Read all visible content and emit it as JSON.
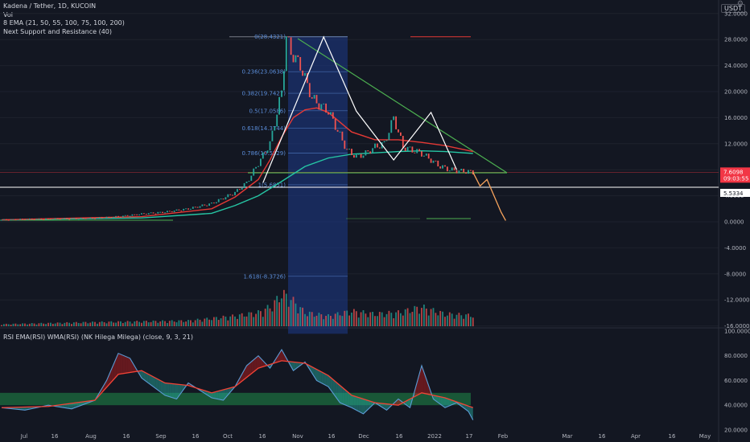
{
  "legend": {
    "title": "Kadena / Tether, 1D, KUCOIN",
    "vol": "Vol",
    "ema": "8 EMA (21, 50, 55, 100, 75, 100, 200)",
    "sr": "Next Support and Resistance (40)"
  },
  "rsi_legend": "RSI EMA(RSI) WMA(RSI)  (NK Hilega Milega) (close, 9, 3, 21)",
  "currency_badge": "USDT",
  "gear_icon": "gear-icon",
  "price_tags": {
    "current": "7.6098",
    "countdown": "09:03:55",
    "support": "5.5334",
    "current_color": "#f23645",
    "support_color": "#ffffff"
  },
  "colors": {
    "background": "#131722",
    "fib_fill": "#1e3a8a",
    "up_volume": "#26a69a",
    "down_volume": "#ef5350",
    "ema_red": "#e53935",
    "ema_teal": "#26c6a4",
    "trend_green": "#4caf50",
    "rsi_blue": "#5b9bd5",
    "rsi_red": "#f44336"
  },
  "chart_data": {
    "type": "line",
    "symbol": "Kadena / Tether, 1D, KUCOIN",
    "price_axis_ticks": [
      "32.0000",
      "28.0000",
      "24.0000",
      "20.0000",
      "16.0000",
      "12.0000",
      "8.0000",
      "4.0000",
      "0.0000",
      "-4.0000",
      "-8.0000",
      "-12.0000",
      "-16.0000"
    ],
    "rsi_axis_ticks": [
      "100.0000",
      "80.0000",
      "60.0000",
      "40.0000",
      "20.0000"
    ],
    "x_axis_ticks": [
      "Jul",
      "16",
      "Aug",
      "16",
      "Sep",
      "16",
      "Oct",
      "16",
      "Nov",
      "16",
      "Dec",
      "16",
      "2022",
      "17",
      "Feb",
      "Mar",
      "16",
      "Apr",
      "16",
      "May"
    ],
    "ylim": [
      -17.5,
      34
    ],
    "rsi_ylim": [
      18,
      100
    ],
    "fib_levels": [
      {
        "label": "0(28.4321)",
        "value": 28.4321
      },
      {
        "label": "0.236(23.0638)",
        "value": 23.0638
      },
      {
        "label": "0.382(19.7427)",
        "value": 19.7427
      },
      {
        "label": "0.5(17.0586)",
        "value": 17.0586
      },
      {
        "label": "0.618(14.3744)",
        "value": 14.3744
      },
      {
        "label": "0.786(10.5529)",
        "value": 10.5529
      },
      {
        "label": "1(5.6851)",
        "value": 5.6851
      },
      {
        "label": "1.618(-8.3726)",
        "value": -8.3726
      }
    ],
    "price_series": {
      "name": "",
      "x_days": [
        0,
        10,
        20,
        30,
        40,
        50,
        60,
        70,
        80,
        90,
        100,
        105,
        110,
        115,
        120,
        122,
        124,
        126,
        128,
        130,
        133,
        136,
        140,
        144,
        148,
        152,
        156,
        160,
        164,
        168,
        172,
        176,
        180,
        184,
        188,
        192,
        196,
        200,
        202
      ],
      "values": [
        0.3,
        0.4,
        0.45,
        0.5,
        0.55,
        0.8,
        1.2,
        1.5,
        2.0,
        2.8,
        4.5,
        6.0,
        9.0,
        12.0,
        20.0,
        28.4,
        26.0,
        25.0,
        24.0,
        22.0,
        19.0,
        18.0,
        17.0,
        14.0,
        11.0,
        10.0,
        10.5,
        11.5,
        12.0,
        16.0,
        11.5,
        11.0,
        10.5,
        9.5,
        8.5,
        8.0,
        7.8,
        7.7,
        7.6
      ],
      "projection_x": [
        202,
        205,
        208,
        211,
        214,
        216
      ],
      "projection_values": [
        7.6,
        5.5,
        6.5,
        4.0,
        1.5,
        0.2
      ]
    },
    "ema_red": {
      "x_days": [
        0,
        60,
        90,
        100,
        110,
        115,
        120,
        125,
        130,
        135,
        140,
        150,
        160,
        170,
        180,
        190,
        202
      ],
      "values": [
        0.3,
        0.8,
        2.0,
        3.8,
        6.5,
        9.5,
        13.0,
        16.0,
        17.2,
        17.5,
        16.8,
        13.8,
        12.6,
        12.6,
        12.2,
        11.7,
        10.8
      ]
    },
    "ema_teal": {
      "x_days": [
        0,
        60,
        90,
        100,
        110,
        120,
        130,
        140,
        150,
        160,
        170,
        180,
        190,
        202
      ],
      "values": [
        0.3,
        0.6,
        1.3,
        2.5,
        4.0,
        6.2,
        8.5,
        9.8,
        10.4,
        10.6,
        10.8,
        10.9,
        10.8,
        10.5
      ]
    },
    "trendlines": {
      "top": {
        "from": [
          114,
          30.2
        ],
        "to": [
          222,
          8.0
        ]
      },
      "support": {
        "from": [
          108,
          8.0
        ],
        "to": [
          222,
          8.0
        ]
      }
    },
    "head_shoulders": [
      [
        112,
        6.0
      ],
      [
        138,
        28.4
      ],
      [
        152,
        17.0
      ],
      [
        168,
        9.5
      ],
      [
        184,
        16.8
      ],
      [
        195,
        8.0
      ]
    ],
    "rsi_series": {
      "name": "",
      "x_days": [
        0,
        10,
        20,
        30,
        40,
        45,
        50,
        55,
        60,
        65,
        70,
        75,
        80,
        85,
        90,
        95,
        100,
        105,
        110,
        115,
        120,
        125,
        130,
        135,
        140,
        145,
        150,
        155,
        160,
        165,
        170,
        175,
        180,
        185,
        190,
        195,
        200,
        202
      ],
      "values": [
        38,
        36,
        40,
        37,
        44,
        60,
        82,
        78,
        62,
        55,
        48,
        45,
        58,
        52,
        46,
        44,
        55,
        72,
        80,
        70,
        85,
        68,
        75,
        60,
        55,
        42,
        38,
        33,
        42,
        36,
        45,
        38,
        72,
        45,
        38,
        42,
        35,
        28
      ]
    },
    "rsi_ema": {
      "x_days": [
        0,
        20,
        40,
        50,
        60,
        70,
        80,
        90,
        100,
        110,
        120,
        130,
        140,
        150,
        160,
        170,
        180,
        190,
        202
      ],
      "values": [
        38,
        39,
        44,
        65,
        68,
        58,
        56,
        50,
        55,
        70,
        76,
        74,
        64,
        48,
        42,
        40,
        50,
        46,
        38
      ]
    },
    "rsi_bands": {
      "upper": 50,
      "lower": 40
    },
    "volume": {
      "peak_day": 122,
      "spikes": [
        [
          0,
          3
        ],
        [
          40,
          6
        ],
        [
          80,
          8
        ],
        [
          100,
          15
        ],
        [
          110,
          20
        ],
        [
          116,
          30
        ],
        [
          120,
          48
        ],
        [
          124,
          40
        ],
        [
          130,
          20
        ],
        [
          140,
          15
        ],
        [
          150,
          22
        ],
        [
          160,
          18
        ],
        [
          170,
          20
        ],
        [
          180,
          28
        ],
        [
          190,
          18
        ],
        [
          200,
          16
        ]
      ]
    }
  }
}
